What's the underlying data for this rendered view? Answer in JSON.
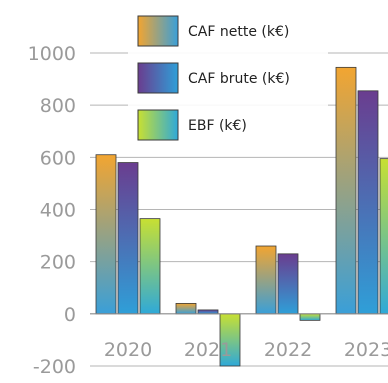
{
  "chart_data": {
    "type": "bar",
    "title": "",
    "xlabel": "",
    "ylabel": "",
    "categories": [
      "2020",
      "2021",
      "2022",
      "2023"
    ],
    "series": [
      {
        "name": "CAF nette (k€)",
        "values": [
          610,
          40,
          260,
          945
        ],
        "gradient": [
          "#f2a531",
          "#3a9fd8"
        ]
      },
      {
        "name": "CAF brute (k€)",
        "values": [
          580,
          15,
          230,
          855
        ],
        "gradient": [
          "#6a3d8f",
          "#2f9fd8"
        ]
      },
      {
        "name": "EBF (k€)",
        "values": [
          365,
          -200,
          -25,
          595
        ],
        "gradient": [
          "#c8e032",
          "#2fa9d8"
        ]
      }
    ],
    "ylim": [
      -200,
      1000
    ],
    "yticks": [
      -200,
      0,
      200,
      400,
      600,
      800,
      1000
    ],
    "grid": true,
    "legend_position": "top"
  }
}
